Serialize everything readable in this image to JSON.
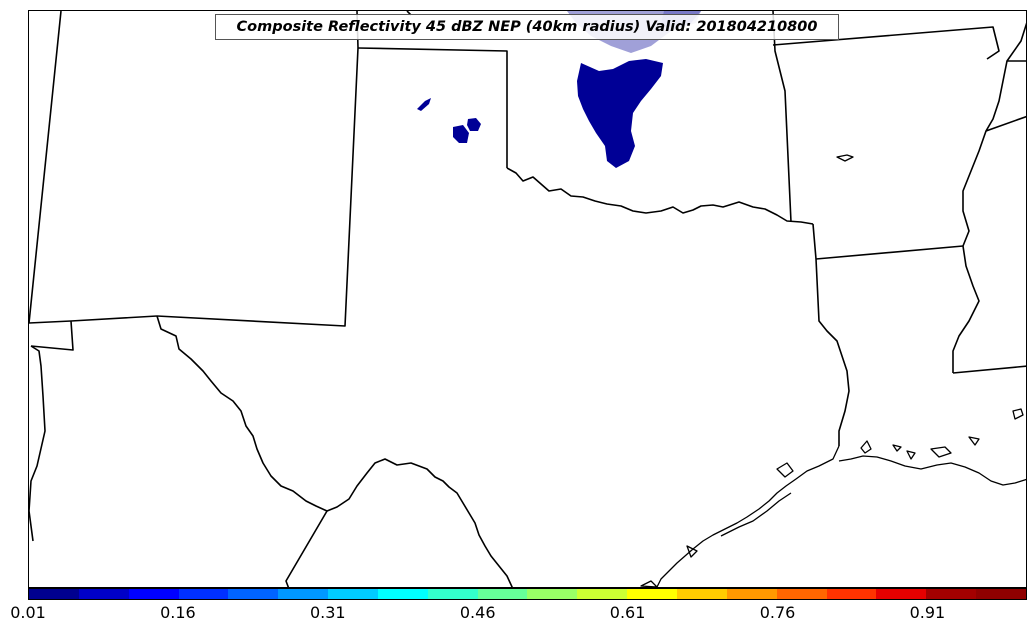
{
  "map": {
    "title": "Composite Reflectivity 45 dBZ NEP (40km radius) Valid: 201804210800",
    "colorbar": {
      "tick_labels": [
        "0.01",
        "0.16",
        "0.31",
        "0.46",
        "0.61",
        "0.76",
        "0.91"
      ],
      "colors": [
        "#00008f",
        "#0000c8",
        "#0000ff",
        "#0030ff",
        "#0064ff",
        "#0098ff",
        "#00ccff",
        "#00ffff",
        "#33ffcc",
        "#66ff99",
        "#99ff66",
        "#ccff33",
        "#ffff00",
        "#ffcc00",
        "#ff9900",
        "#ff6600",
        "#ff3300",
        "#e60000",
        "#a30000",
        "#8f0000"
      ]
    },
    "shading": {
      "main_fill": "#000096",
      "light_fill": "#a0a0d8"
    }
  }
}
